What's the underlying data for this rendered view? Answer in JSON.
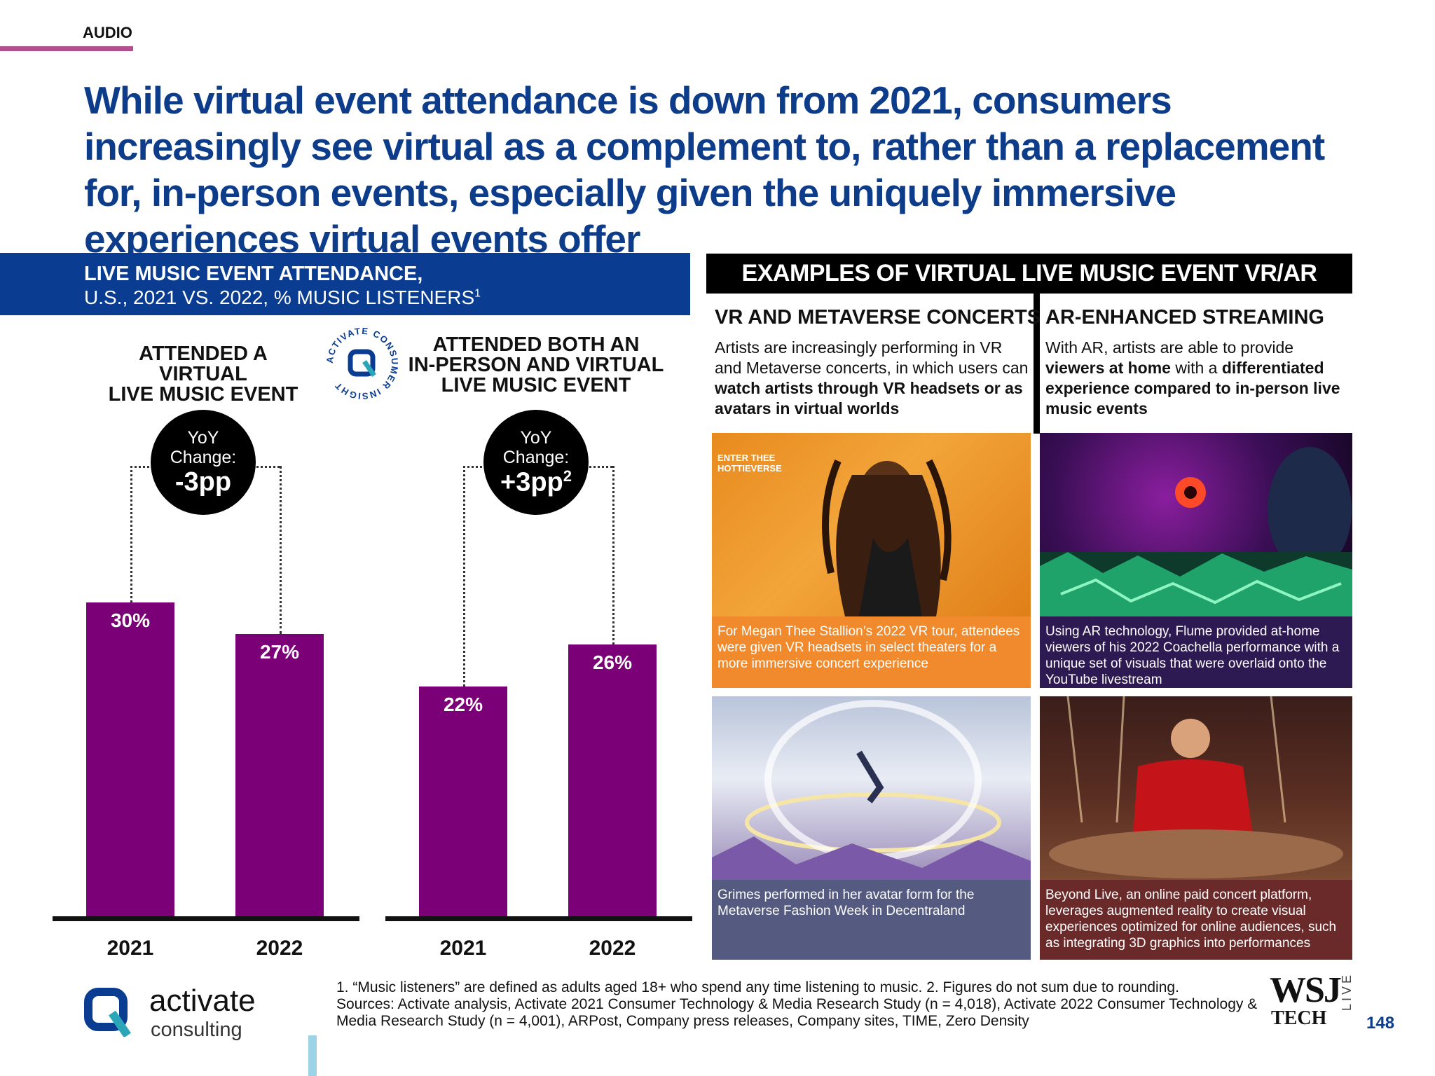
{
  "section": "AUDIO",
  "headline": "While virtual event attendance is down from 2021, consumers increasingly see virtual as a complement to, rather than a replacement for, in-person events, especially given the uniquely immersive experiences virtual events offer",
  "left_panel": {
    "title_line1": "LIVE MUSIC EVENT ATTENDANCE,",
    "title_line2": "U.S., 2021 VS. 2022, % MUSIC LISTENERS",
    "title_sup": "1",
    "insight_badge": "ACTIVATE CONSUMER INSIGHT"
  },
  "chart_data": [
    {
      "type": "bar",
      "title": "ATTENDED A VIRTUAL LIVE MUSIC EVENT",
      "title_lines": [
        "ATTENDED A VIRTUAL",
        "LIVE MUSIC EVENT"
      ],
      "categories": [
        "2021",
        "2022"
      ],
      "values": [
        30,
        27
      ],
      "value_labels": [
        "30%",
        "27%"
      ],
      "ylim": [
        0,
        40
      ],
      "yoy_label1": "YoY",
      "yoy_label2": "Change:",
      "yoy_value": "-3pp",
      "yoy_sup": ""
    },
    {
      "type": "bar",
      "title": "ATTENDED BOTH AN IN-PERSON AND VIRTUAL LIVE MUSIC EVENT",
      "title_lines": [
        "ATTENDED BOTH AN",
        "IN-PERSON AND VIRTUAL",
        "LIVE MUSIC EVENT"
      ],
      "categories": [
        "2021",
        "2022"
      ],
      "values": [
        22,
        26
      ],
      "value_labels": [
        "22%",
        "26%"
      ],
      "ylim": [
        0,
        40
      ],
      "yoy_label1": "YoY",
      "yoy_label2": "Change:",
      "yoy_value": "+3pp",
      "yoy_sup": "2"
    }
  ],
  "right_panel": {
    "banner": "EXAMPLES OF VIRTUAL LIVE MUSIC EVENT VR/AR TECHNOLOGY",
    "vr": {
      "title": "VR AND METAVERSE CONCERTS",
      "desc_plain1": "Artists are increasingly performing in VR and Metaverse concerts, in which users can ",
      "desc_bold1": "watch artists through VR headsets or as avatars in virtual worlds",
      "photo1_overlay": "ENTER THEE HOTTIEVERSE",
      "caption1": "For Megan Thee Stallion’s 2022 VR tour, attendees were given VR headsets in select theaters for a more immersive concert experience",
      "caption2": "Grimes performed in her avatar form for the Metaverse Fashion Week in Decentraland"
    },
    "ar": {
      "title": "AR-ENHANCED STREAMING",
      "desc_plain1": "With AR, artists are able to provide ",
      "desc_bold1": "viewers at home",
      "desc_plain2": " with a ",
      "desc_bold2": "differentiated experience compared to in-person live music events",
      "caption1": "Using AR technology, Flume provided at-home viewers of his 2022 Coachella performance with a unique set of visuals that were overlaid onto the YouTube livestream",
      "caption2": "Beyond Live, an online paid concert platform, leverages augmented reality to create visual experiences optimized for online audiences, such as integrating 3D graphics into performances"
    }
  },
  "footer": {
    "logo_line1": "activate",
    "logo_line2": "consulting",
    "footnote1": "1. “Music listeners” are defined as adults aged 18+ who spend any time listening to music.  2. Figures do not sum due to rounding.",
    "footnote2": "Sources: Activate analysis, Activate 2021 Consumer Technology & Media Research Study (n = 4,018), Activate 2022 Consumer Technology & Media Research Study (n = 4,001), ARPost, Company press releases, Company sites, TIME, Zero Density",
    "wsj": "WSJ",
    "tech": "TECH",
    "live": "LIVE",
    "page_number": "148"
  },
  "colors": {
    "accent_blue": "#0a3d91",
    "bar_purple": "#7b0078",
    "section_pink": "#b2508f",
    "caption_orange": "#f08a2c",
    "caption_purple": "#2e1a52",
    "caption_slate": "#555a80",
    "caption_maroon": "#6b2a2a"
  }
}
